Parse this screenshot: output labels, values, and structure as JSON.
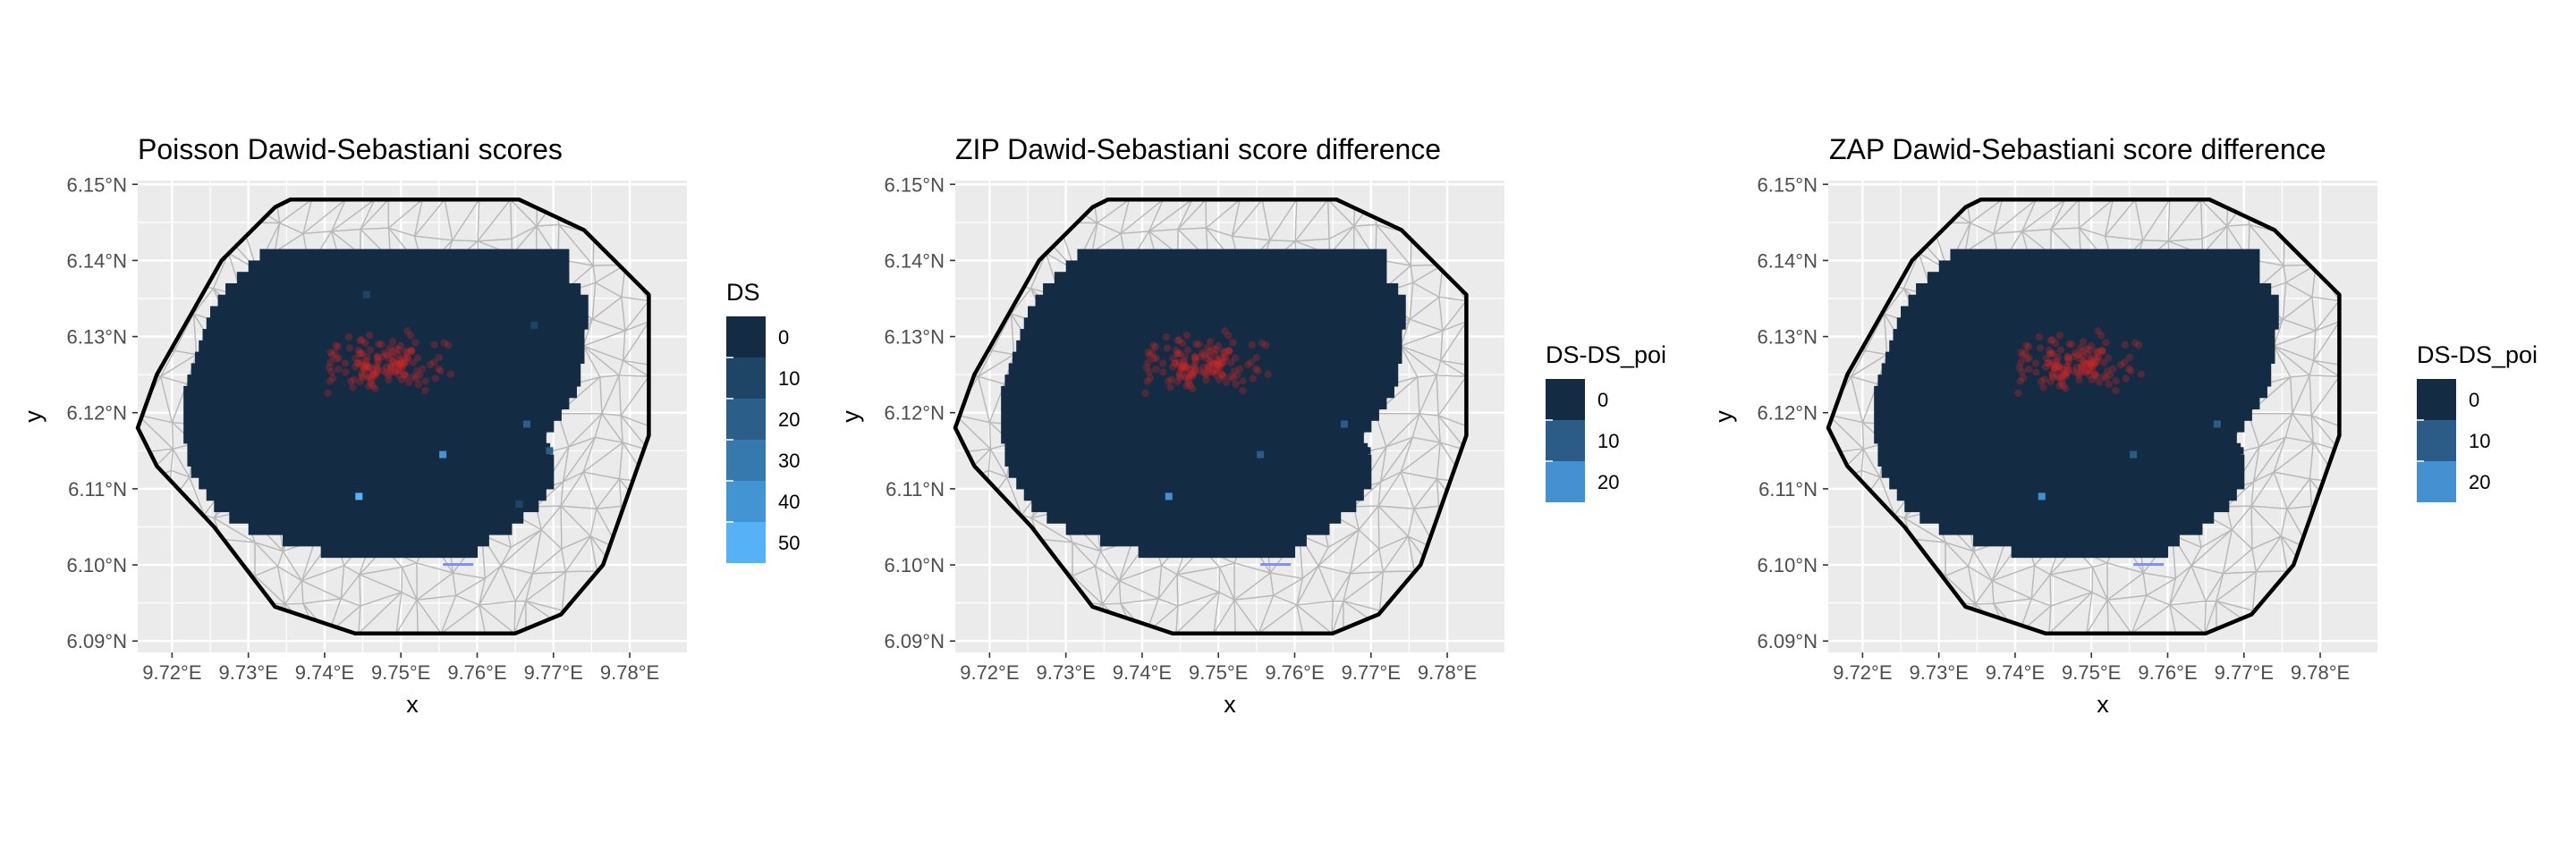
{
  "chart_data": [
    {
      "type": "heatmap",
      "title": "Poisson Dawid-Sebastiani scores",
      "xlabel": "x",
      "ylabel": "y",
      "x_ticks": [
        "9.72°E",
        "9.73°E",
        "9.74°E",
        "9.75°E",
        "9.76°E",
        "9.77°E",
        "9.78°E"
      ],
      "y_ticks": [
        "6.09°N",
        "6.10°N",
        "6.11°N",
        "6.12°N",
        "6.13°N",
        "6.14°N",
        "6.15°N"
      ],
      "xlim": [
        9.7155,
        9.7875
      ],
      "ylim": [
        6.0885,
        6.1505
      ],
      "grid": true,
      "legend": {
        "title": "DS",
        "position": "right",
        "labels": [
          "0",
          "10",
          "20",
          "30",
          "40",
          "50"
        ],
        "colors": [
          "#132b43",
          "#1f4566",
          "#2b5f89",
          "#3679ad",
          "#4294d2",
          "#56b1f7"
        ]
      },
      "hotspots": [
        {
          "x": 9.7445,
          "y": 6.109,
          "value": 50
        },
        {
          "x": 9.7555,
          "y": 6.1145,
          "value": 40
        },
        {
          "x": 9.7695,
          "y": 6.115,
          "value": 20
        },
        {
          "x": 9.7665,
          "y": 6.1185,
          "value": 20
        },
        {
          "x": 9.7655,
          "y": 6.108,
          "value": 10
        },
        {
          "x": 9.7675,
          "y": 6.1315,
          "value": 10
        },
        {
          "x": 9.7455,
          "y": 6.1355,
          "value": 10
        }
      ]
    },
    {
      "type": "heatmap",
      "title": "ZIP Dawid-Sebastiani score difference",
      "xlabel": "x",
      "ylabel": "y",
      "x_ticks": [
        "9.72°E",
        "9.73°E",
        "9.74°E",
        "9.75°E",
        "9.76°E",
        "9.77°E",
        "9.78°E"
      ],
      "y_ticks": [
        "6.09°N",
        "6.10°N",
        "6.11°N",
        "6.12°N",
        "6.13°N",
        "6.14°N",
        "6.15°N"
      ],
      "xlim": [
        9.7155,
        9.7875
      ],
      "ylim": [
        6.0885,
        6.1505
      ],
      "grid": true,
      "legend": {
        "title": "DS-DS_poi",
        "position": "right",
        "labels": [
          "0",
          "10",
          "20"
        ],
        "colors": [
          "#132b43",
          "#2a5c87",
          "#4490d0"
        ]
      },
      "hotspots": [
        {
          "x": 9.7435,
          "y": 6.109,
          "value": 20
        },
        {
          "x": 9.7555,
          "y": 6.1145,
          "value": 15
        },
        {
          "x": 9.7665,
          "y": 6.1185,
          "value": 12
        },
        {
          "x": 9.7695,
          "y": 6.115,
          "value": 8
        },
        {
          "x": 9.7655,
          "y": 6.108,
          "value": 6
        }
      ]
    },
    {
      "type": "heatmap",
      "title": "ZAP Dawid-Sebastiani score difference",
      "xlabel": "x",
      "ylabel": "y",
      "x_ticks": [
        "9.72°E",
        "9.73°E",
        "9.74°E",
        "9.75°E",
        "9.76°E",
        "9.77°E",
        "9.78°E"
      ],
      "y_ticks": [
        "6.09°N",
        "6.10°N",
        "6.11°N",
        "6.12°N",
        "6.13°N",
        "6.14°N",
        "6.15°N"
      ],
      "xlim": [
        9.7155,
        9.7875
      ],
      "ylim": [
        6.0885,
        6.1505
      ],
      "grid": true,
      "legend": {
        "title": "DS-DS_poi",
        "position": "right",
        "labels": [
          "0",
          "10",
          "20"
        ],
        "colors": [
          "#132b43",
          "#2a5c87",
          "#4490d0"
        ]
      },
      "hotspots": [
        {
          "x": 9.7435,
          "y": 6.109,
          "value": 20
        },
        {
          "x": 9.7555,
          "y": 6.1145,
          "value": 15
        },
        {
          "x": 9.7665,
          "y": 6.1185,
          "value": 12
        },
        {
          "x": 9.7695,
          "y": 6.115,
          "value": 8
        },
        {
          "x": 9.7655,
          "y": 6.108,
          "value": 6
        }
      ]
    }
  ],
  "boundary": [
    [
      9.7155,
      6.118
    ],
    [
      9.718,
      6.125
    ],
    [
      9.7265,
      6.14
    ],
    [
      9.7335,
      6.147
    ],
    [
      9.7355,
      6.148
    ],
    [
      9.7655,
      6.148
    ],
    [
      9.774,
      6.144
    ],
    [
      9.7805,
      6.1375
    ],
    [
      9.7825,
      6.1355
    ],
    [
      9.7825,
      6.117
    ],
    [
      9.7765,
      6.1
    ],
    [
      9.771,
      6.0935
    ],
    [
      9.765,
      6.091
    ],
    [
      9.744,
      6.091
    ],
    [
      9.7335,
      6.0945
    ],
    [
      9.7255,
      6.105
    ],
    [
      9.718,
      6.113
    ]
  ],
  "field_rows": [
    [
      6.101,
      9.7395,
      9.76
    ],
    [
      6.1025,
      9.7345,
      9.7615
    ],
    [
      6.104,
      9.73,
      9.7645
    ],
    [
      6.1055,
      9.7275,
      9.766
    ],
    [
      6.107,
      9.7255,
      9.768
    ],
    [
      6.1085,
      9.7245,
      9.769
    ],
    [
      6.11,
      9.7235,
      9.77
    ],
    [
      6.1115,
      9.7225,
      9.77
    ],
    [
      6.113,
      9.722,
      9.77
    ],
    [
      6.1145,
      9.722,
      9.7695
    ],
    [
      6.116,
      9.7215,
      9.769
    ],
    [
      6.1175,
      9.7215,
      9.77
    ],
    [
      6.119,
      9.7215,
      9.771
    ],
    [
      6.1205,
      9.7215,
      9.772
    ],
    [
      6.122,
      9.7215,
      9.773
    ],
    [
      6.1235,
      9.722,
      9.7735
    ],
    [
      6.125,
      9.7225,
      9.7735
    ],
    [
      6.1265,
      9.723,
      9.774
    ],
    [
      6.128,
      9.7235,
      9.774
    ],
    [
      6.1295,
      9.724,
      9.774
    ],
    [
      6.131,
      9.7245,
      9.7745
    ],
    [
      6.1325,
      9.725,
      9.7745
    ],
    [
      6.134,
      9.726,
      9.7745
    ],
    [
      6.1355,
      9.727,
      9.7735
    ],
    [
      6.137,
      9.7285,
      9.772
    ],
    [
      6.1385,
      9.73,
      9.772
    ],
    [
      6.14,
      9.7315,
      9.772
    ]
  ]
}
